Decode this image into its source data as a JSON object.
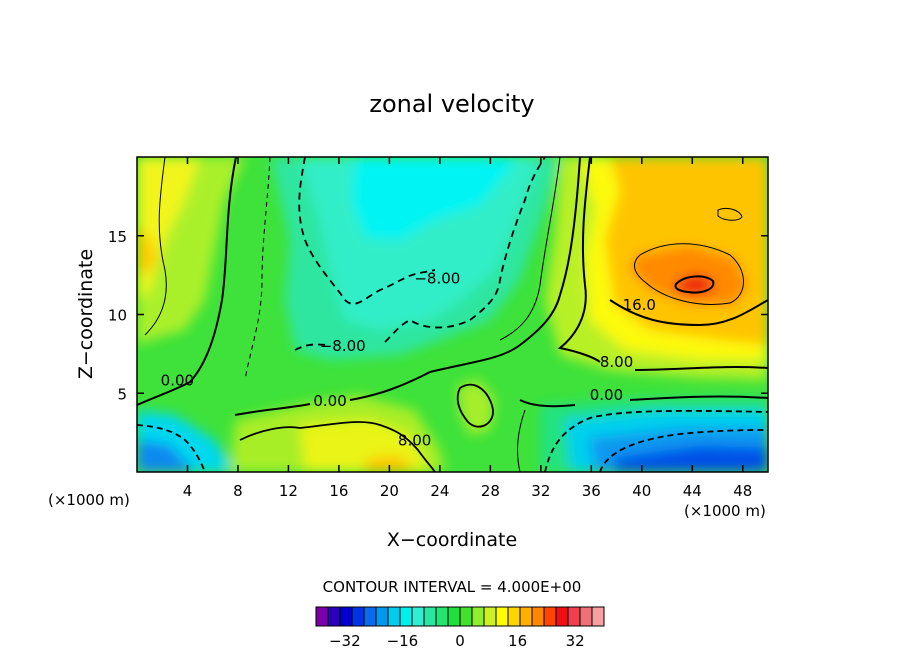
{
  "chart_data": {
    "type": "heatmap",
    "subtype": "filled-contour",
    "title": "zonal velocity",
    "xlabel": "X−coordinate",
    "ylabel": "Z−coordinate",
    "x_unit_label": "(×1000 m)",
    "z_unit_label": "(×1000 m)",
    "xlim": [
      0,
      50
    ],
    "ylim": [
      0,
      20
    ],
    "x_ticks": [
      4,
      8,
      12,
      16,
      20,
      24,
      28,
      32,
      36,
      40,
      44,
      48
    ],
    "y_ticks": [
      5,
      10,
      15
    ],
    "contour_interval_text": "CONTOUR INTERVAL = 4.000E+00",
    "contour_labels": [
      {
        "text": "−8.00",
        "x": 23.8,
        "z": 12.3
      },
      {
        "text": "−8.00",
        "x": 16.3,
        "z": 8.0
      },
      {
        "text": "0.00",
        "x": 3.2,
        "z": 5.8
      },
      {
        "text": "0.00",
        "x": 15.3,
        "z": 4.5
      },
      {
        "text": "8.00",
        "x": 22.0,
        "z": 2.0
      },
      {
        "text": "16.0",
        "x": 39.8,
        "z": 10.6
      },
      {
        "text": "8.00",
        "x": 38.0,
        "z": 7.0
      },
      {
        "text": "0.00",
        "x": 37.2,
        "z": 4.9
      }
    ],
    "colorbar": {
      "min": -40,
      "max": 40,
      "step": 4,
      "tick_values": [
        -32,
        -16,
        0,
        16,
        32
      ],
      "tick_labels": [
        "−32",
        "−16",
        "0",
        "16",
        "32"
      ],
      "colors": [
        "#7a00aa",
        "#2a00b8",
        "#0000d0",
        "#0033e8",
        "#0a6aee",
        "#0099ee",
        "#00ccf0",
        "#00f0f0",
        "#30eed0",
        "#28e6a0",
        "#22e470",
        "#20e040",
        "#44e030",
        "#90ee30",
        "#ccf020",
        "#ffff00",
        "#ffd700",
        "#ffb000",
        "#ff8800",
        "#ff4400",
        "#ee1010",
        "#f04050",
        "#f07078",
        "#f8a0a0"
      ]
    }
  }
}
